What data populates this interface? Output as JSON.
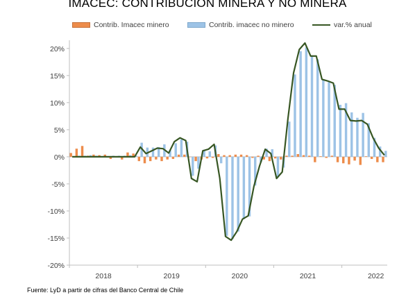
{
  "title": "IMACEC: CONTRIBUCIÓN MINERA Y NO MINERA",
  "source": "Fuente: LyD a partir de cifras del Banco Central de Chile",
  "chart_data": {
    "type": "bar",
    "title": "IMACEC: CONTRIBUCIÓN MINERA Y NO MINERA",
    "ylim": [
      -20,
      21
    ],
    "yticks": [
      20,
      15,
      10,
      5,
      0,
      -5,
      -10,
      -15,
      -20
    ],
    "ytick_labels": [
      "20%",
      "15%",
      "10%",
      "5%",
      "0%",
      "-5%",
      "-10%",
      "-15%",
      "-20%"
    ],
    "year_labels": [
      "2018",
      "2019",
      "2020",
      "2021",
      "2022"
    ],
    "x_first_month": "2018-01",
    "grid": false,
    "legend_position": "top",
    "series": [
      {
        "name": "Contrib. Imacec minero",
        "kind": "bar",
        "color": "#ED8C4B",
        "values": [
          0.7,
          1.5,
          2.0,
          0.2,
          0.4,
          0.3,
          0.4,
          -0.4,
          0.1,
          -0.5,
          0.8,
          0.6,
          -0.8,
          -1.2,
          -0.8,
          -0.5,
          -0.8,
          -0.5,
          -0.4,
          0.4,
          0.4,
          0.0,
          -0.8,
          -0.5,
          -0.3,
          -0.2,
          0.5,
          0.3,
          0.3,
          0.4,
          0.4,
          0.3,
          -0.2,
          0.2,
          -0.5,
          -0.8,
          -0.3,
          -0.5,
          0.2,
          0.2,
          0.5,
          0.3,
          0.2,
          -1.0,
          0.1,
          -0.2,
          0.2,
          -1.0,
          -1.2,
          -1.4,
          -0.7,
          -1.5,
          0.1,
          -0.4,
          -1.0,
          -1.0
        ]
      },
      {
        "name": "Contrib. imacec no minero",
        "kind": "bar",
        "color": "#9DC3E6",
        "values": [
          0.1,
          0.2,
          0.2,
          0.3,
          0.2,
          0.1,
          0.1,
          0.2,
          0.2,
          0.2,
          0.3,
          0.2,
          2.6,
          1.7,
          1.7,
          1.8,
          2.3,
          1.2,
          2.5,
          3.2,
          2.8,
          -3.5,
          -2.2,
          1.3,
          1.0,
          2.1,
          -1.2,
          -14.6,
          -15.2,
          -13.8,
          -11.5,
          -11.0,
          -5.3,
          -1.0,
          1.5,
          1.4,
          -3.8,
          -2.0,
          6.5,
          15.2,
          19.5,
          20.2,
          18.5,
          18.0,
          14.2,
          13.8,
          13.3,
          9.6,
          9.9,
          8.2,
          7.2,
          8.1,
          6.2,
          3.5,
          1.9,
          1.1
        ]
      },
      {
        "name": "var.% anual",
        "kind": "line",
        "color": "#375623",
        "values": [
          0.0,
          0.0,
          0.0,
          0.0,
          0.0,
          0.0,
          0.0,
          0.0,
          0.0,
          0.0,
          0.0,
          0.0,
          1.8,
          0.6,
          1.1,
          1.6,
          1.5,
          0.7,
          2.8,
          3.5,
          3.0,
          -4.0,
          -4.6,
          1.1,
          1.4,
          2.3,
          -4.0,
          -14.7,
          -15.4,
          -13.8,
          -11.5,
          -10.9,
          -5.5,
          -1.7,
          1.4,
          0.6,
          -4.0,
          -2.8,
          7.0,
          15.5,
          19.8,
          21.0,
          18.6,
          18.6,
          14.3,
          14.0,
          13.6,
          8.8,
          8.8,
          6.7,
          6.6,
          6.7,
          6.0,
          3.5,
          1.6,
          0.3
        ]
      }
    ]
  }
}
